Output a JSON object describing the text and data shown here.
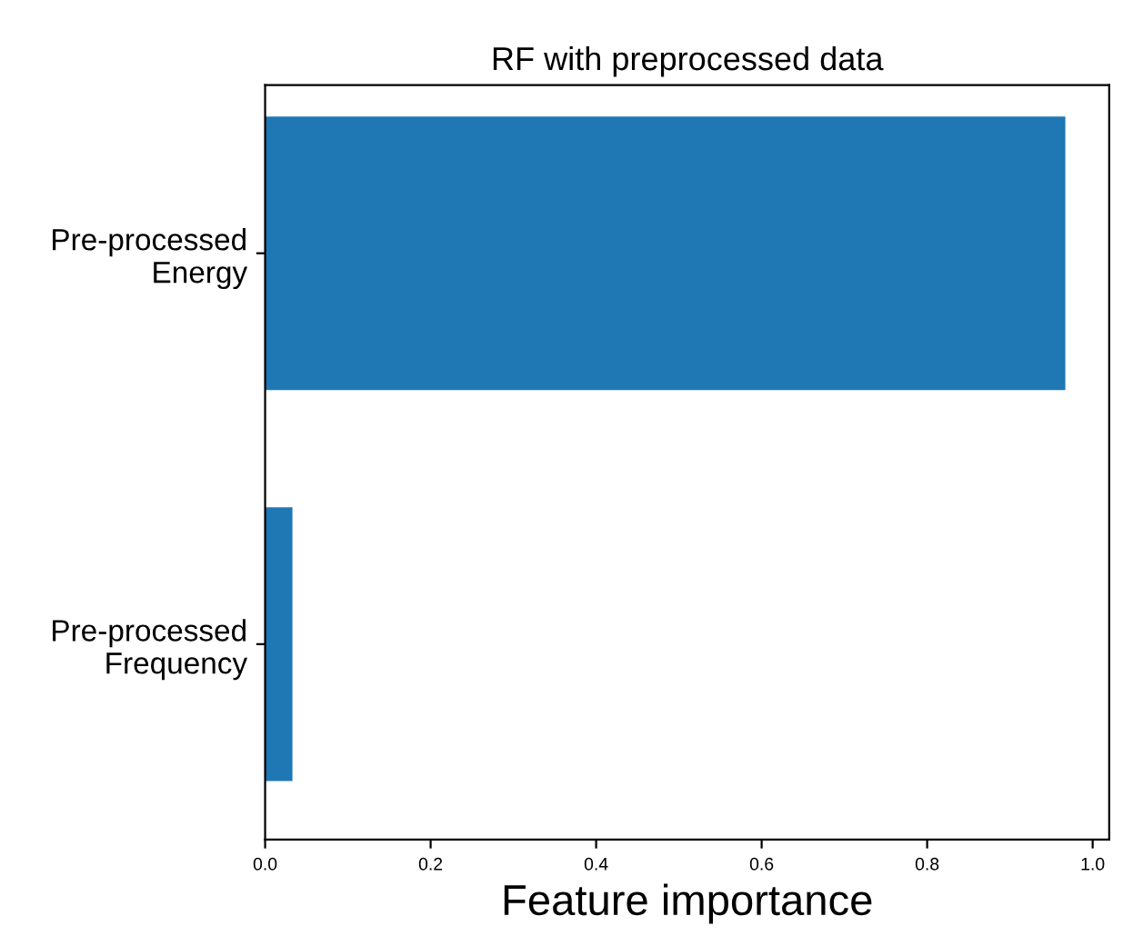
{
  "chart_data": {
    "type": "bar",
    "orientation": "horizontal",
    "title": "RF with preprocessed data",
    "xlabel": "Feature importance",
    "categories": [
      "Pre-processed\nEnergy",
      "Pre-processed\nFrequency"
    ],
    "values": [
      0.967,
      0.033
    ],
    "color": "#1f77b4",
    "xlim": [
      0,
      1.02
    ],
    "xticks": [
      {
        "value": 0,
        "label": "0.0"
      },
      0.2,
      0.4,
      0.6,
      0.8,
      {
        "value": 1,
        "label": "1.0"
      }
    ],
    "grid": false
  }
}
